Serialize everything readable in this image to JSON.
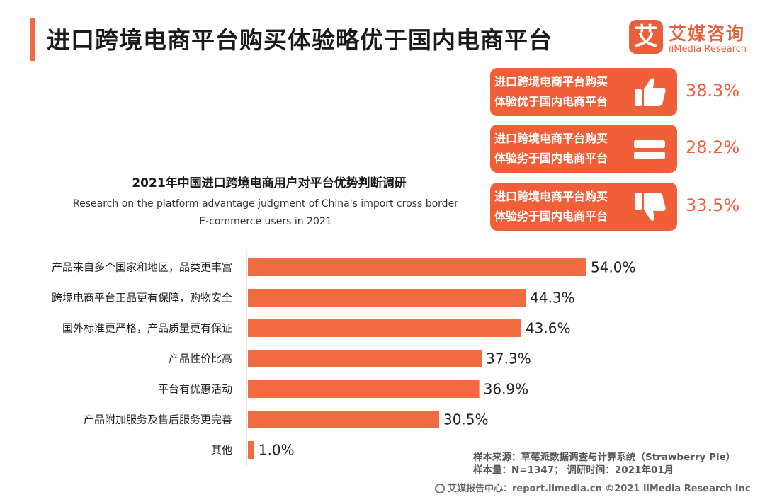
{
  "page_title": "进口跨境电商平台购买体验略优于国内电商平台",
  "logo": {
    "mark": "艾",
    "name_cn": "艾媒咨询",
    "name_en": "iiMedia Research"
  },
  "judgments": [
    {
      "text_line1": "进口跨境电商平台购买",
      "text_line2": "体验优于国内电商平台",
      "icon": "thumbs-up-icon",
      "percent": "38.3%"
    },
    {
      "text_line1": "进口跨境电商平台购买",
      "text_line2": "体验劣于国内电商平台",
      "icon": "equal-icon",
      "percent": "28.2%"
    },
    {
      "text_line1": "进口跨境电商平台购买",
      "text_line2": "体验劣于国内电商平台",
      "icon": "thumbs-down-icon",
      "percent": "33.5%"
    }
  ],
  "chart_data": {
    "type": "bar",
    "orientation": "horizontal",
    "title": "2021年中国进口跨境电商用户对平台优势判断调研",
    "subtitle_line1": "Research on the platform advantage judgment of China's import cross border",
    "subtitle_line2": "E-commerce users in 2021",
    "categories": [
      "产品来自多个国家和地区，品类更丰富",
      "跨境电商平台正品更有保障，购物安全",
      "国外标准更严格，产品质量更有保证",
      "产品性价比高",
      "平台有优惠活动",
      "产品附加服务及售后服务更完善",
      "其他"
    ],
    "values": [
      54.0,
      44.3,
      43.6,
      37.3,
      36.9,
      30.5,
      1.0
    ],
    "value_labels": [
      "54.0%",
      "44.3%",
      "43.6%",
      "37.3%",
      "36.9%",
      "30.5%",
      "1.0%"
    ],
    "xlim": [
      0,
      54
    ],
    "bar_color": "#f26a3f",
    "grid": false,
    "legend": "none"
  },
  "notes": {
    "source": "样本来源：草莓派数据调查与计算系统（Strawberry Pie）",
    "sample": "样本量：N=1347； 调研时间：2021年01月"
  },
  "footer": {
    "text": "艾媒报告中心：report.iimedia.cn ©2021 iiMedia Research Inc"
  },
  "colors": {
    "accent": "#f05f37",
    "text": "#222222"
  }
}
